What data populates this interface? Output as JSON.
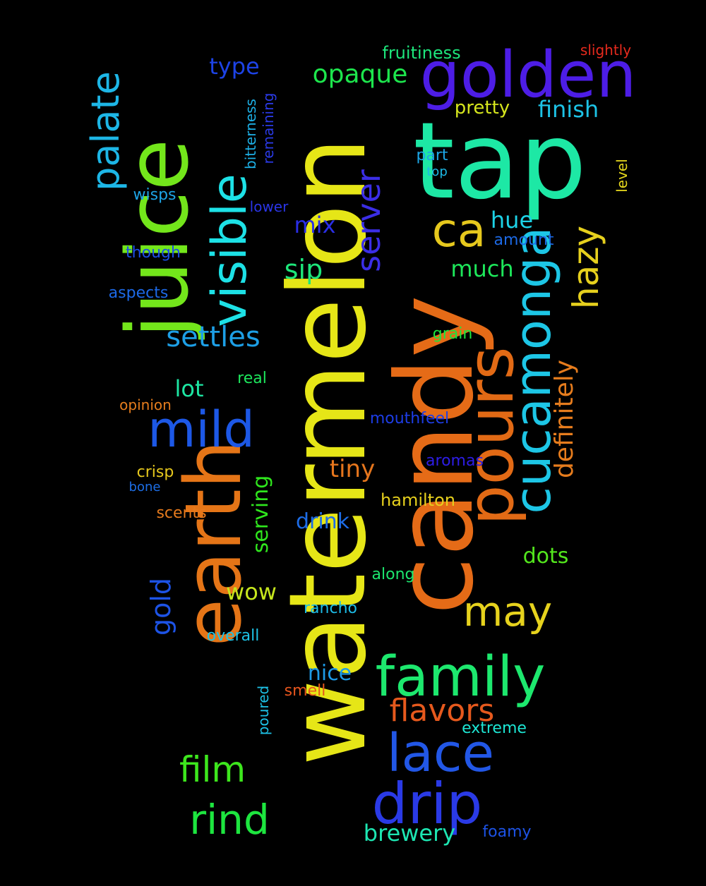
{
  "background": "#000000",
  "words": [
    {
      "text": "watermelon",
      "color": "#e6e617",
      "size": 150,
      "vertical": true
    },
    {
      "text": "candy",
      "color": "#e56b17",
      "size": 150,
      "vertical": true
    },
    {
      "text": "tap",
      "color": "#1de8a5",
      "size": 150,
      "vertical": false
    },
    {
      "text": "juice",
      "color": "#73e61b",
      "size": 120,
      "vertical": true
    },
    {
      "text": "earth",
      "color": "#e57517",
      "size": 110,
      "vertical": true
    },
    {
      "text": "golden",
      "color": "#4d1de6",
      "size": 90,
      "vertical": false
    },
    {
      "text": "pours",
      "color": "#e26a15",
      "size": 90,
      "vertical": true
    },
    {
      "text": "cucamonga",
      "color": "#1dc6e6",
      "size": 70,
      "vertical": true
    },
    {
      "text": "visible",
      "color": "#1de1e6",
      "size": 68,
      "vertical": true
    },
    {
      "text": "family",
      "color": "#1de86e",
      "size": 78,
      "vertical": false
    },
    {
      "text": "drip",
      "color": "#2a3ae6",
      "size": 80,
      "vertical": false
    },
    {
      "text": "lace",
      "color": "#2257e6",
      "size": 74,
      "vertical": false
    },
    {
      "text": "mild",
      "color": "#1d58e6",
      "size": 70,
      "vertical": false
    },
    {
      "text": "rind",
      "color": "#1de63f",
      "size": 58,
      "vertical": false
    },
    {
      "text": "palate",
      "color": "#1db6e6",
      "size": 54,
      "vertical": true
    },
    {
      "text": "ca",
      "color": "#e6c81d",
      "size": 66,
      "vertical": false
    },
    {
      "text": "may",
      "color": "#e6d21d",
      "size": 58,
      "vertical": false
    },
    {
      "text": "hazy",
      "color": "#e6d01d",
      "size": 50,
      "vertical": true
    },
    {
      "text": "server",
      "color": "#3b2ee6",
      "size": 46,
      "vertical": true
    },
    {
      "text": "film",
      "color": "#3de61d",
      "size": 50,
      "vertical": false
    },
    {
      "text": "flavors",
      "color": "#e6591d",
      "size": 44,
      "vertical": false
    },
    {
      "text": "definitely",
      "color": "#e67c1d",
      "size": 36,
      "vertical": true
    },
    {
      "text": "settles",
      "color": "#1d9fe6",
      "size": 40,
      "vertical": false
    },
    {
      "text": "opaque",
      "color": "#1de64d",
      "size": 36,
      "vertical": false
    },
    {
      "text": "sip",
      "color": "#1de67a",
      "size": 38,
      "vertical": false
    },
    {
      "text": "gold",
      "color": "#1d53e6",
      "size": 38,
      "vertical": true
    },
    {
      "text": "serving",
      "color": "#2fe61d",
      "size": 30,
      "vertical": true
    },
    {
      "text": "brewery",
      "color": "#1de6b2",
      "size": 32,
      "vertical": false
    },
    {
      "text": "tiny",
      "color": "#e6761d",
      "size": 34,
      "vertical": false
    },
    {
      "text": "much",
      "color": "#1de65a",
      "size": 32,
      "vertical": false
    },
    {
      "text": "finish",
      "color": "#1dc3e6",
      "size": 32,
      "vertical": false
    },
    {
      "text": "hue",
      "color": "#1dd2e6",
      "size": 32,
      "vertical": false
    },
    {
      "text": "mix",
      "color": "#2a2ee6",
      "size": 32,
      "vertical": false
    },
    {
      "text": "wow",
      "color": "#c6e61d",
      "size": 32,
      "vertical": false
    },
    {
      "text": "lot",
      "color": "#1de6a3",
      "size": 32,
      "vertical": false
    },
    {
      "text": "type",
      "color": "#1d43e6",
      "size": 32,
      "vertical": false
    },
    {
      "text": "dots",
      "color": "#53e61d",
      "size": 30,
      "vertical": false
    },
    {
      "text": "drink",
      "color": "#1d6ce6",
      "size": 30,
      "vertical": false
    },
    {
      "text": "nice",
      "color": "#1d9ae6",
      "size": 30,
      "vertical": false
    },
    {
      "text": "pretty",
      "color": "#d6e61d",
      "size": 26,
      "vertical": false
    },
    {
      "text": "fruitiness",
      "color": "#1de67c",
      "size": 24,
      "vertical": false
    },
    {
      "text": "hamilton",
      "color": "#e6d01d",
      "size": 24,
      "vertical": false
    },
    {
      "text": "mouthfeel",
      "color": "#1d3de6",
      "size": 22,
      "vertical": false
    },
    {
      "text": "rancho",
      "color": "#1dbbe6",
      "size": 22,
      "vertical": false
    },
    {
      "text": "overall",
      "color": "#1dc3e6",
      "size": 22,
      "vertical": false
    },
    {
      "text": "aromas",
      "color": "#2d1de6",
      "size": 22,
      "vertical": false
    },
    {
      "text": "along",
      "color": "#1de66e",
      "size": 22,
      "vertical": false
    },
    {
      "text": "grain",
      "color": "#1de63d",
      "size": 22,
      "vertical": false
    },
    {
      "text": "extreme",
      "color": "#1de6d4",
      "size": 22,
      "vertical": false
    },
    {
      "text": "smell",
      "color": "#e6551d",
      "size": 22,
      "vertical": false
    },
    {
      "text": "poured",
      "color": "#1dc1e6",
      "size": 20,
      "vertical": true
    },
    {
      "text": "foamy",
      "color": "#1d53e6",
      "size": 22,
      "vertical": false
    },
    {
      "text": "aspects",
      "color": "#1d69e6",
      "size": 22,
      "vertical": false
    },
    {
      "text": "though",
      "color": "#1d4ee6",
      "size": 22,
      "vertical": false
    },
    {
      "text": "wisps",
      "color": "#1da4e6",
      "size": 22,
      "vertical": false
    },
    {
      "text": "crisp",
      "color": "#e6c81d",
      "size": 22,
      "vertical": false
    },
    {
      "text": "scents",
      "color": "#e67a1d",
      "size": 22,
      "vertical": false
    },
    {
      "text": "real",
      "color": "#1de65c",
      "size": 22,
      "vertical": false
    },
    {
      "text": "opinion",
      "color": "#e67d1d",
      "size": 20,
      "vertical": false
    },
    {
      "text": "bone",
      "color": "#1d6ee6",
      "size": 18,
      "vertical": false
    },
    {
      "text": "part",
      "color": "#1da6e6",
      "size": 22,
      "vertical": false
    },
    {
      "text": "amount",
      "color": "#1d6ae6",
      "size": 22,
      "vertical": false
    },
    {
      "text": "lower",
      "color": "#2a35e6",
      "size": 20,
      "vertical": false
    },
    {
      "text": "top",
      "color": "#1db9e6",
      "size": 18,
      "vertical": false
    },
    {
      "text": "bitterness",
      "color": "#1db0e6",
      "size": 20,
      "vertical": true
    },
    {
      "text": "remaining",
      "color": "#2a3ae6",
      "size": 20,
      "vertical": true
    },
    {
      "text": "level",
      "color": "#e6d81d",
      "size": 20,
      "vertical": true
    },
    {
      "text": "slightly",
      "color": "#e62a1d",
      "size": 20,
      "vertical": false
    }
  ]
}
